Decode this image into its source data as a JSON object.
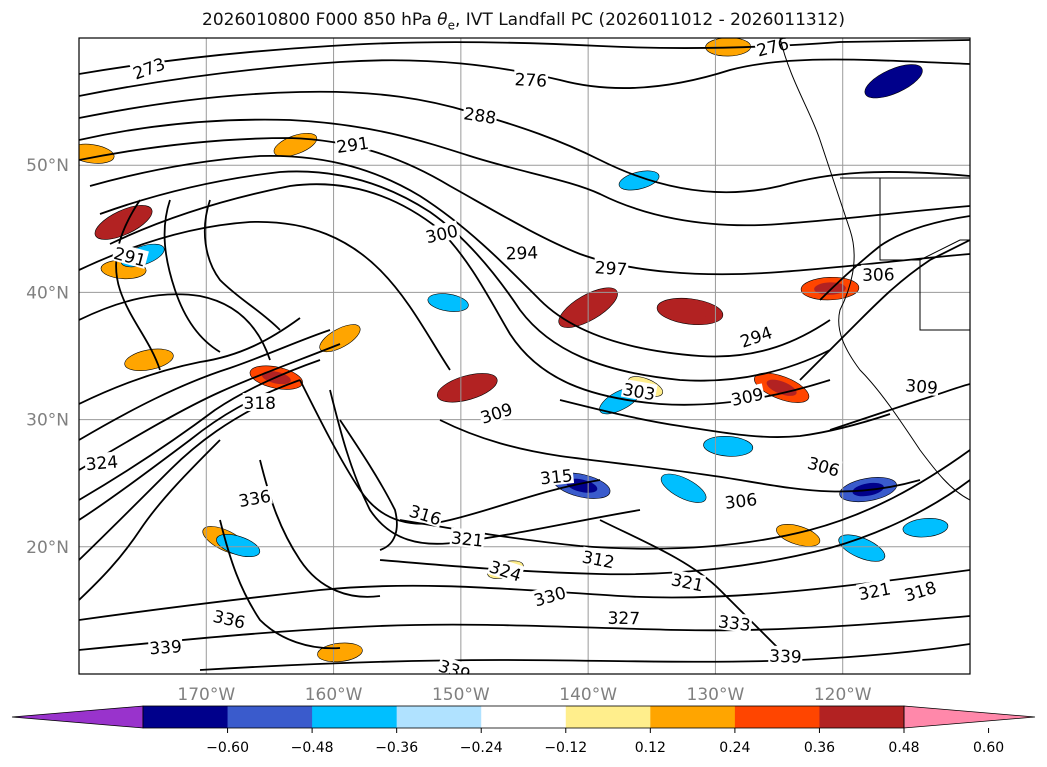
{
  "chart_data": {
    "type": "contour",
    "title": {
      "prefix": "2026010800 F000 850 hPa ",
      "theta": "θ",
      "theta_sub": "e",
      "suffix": ", IVT Landfall PC (2026011012 - 2026011312)"
    },
    "xlim": [
      -180,
      -110
    ],
    "ylim": [
      10,
      60
    ],
    "x_ticks": [
      {
        "value": -170,
        "label": "170°W"
      },
      {
        "value": -160,
        "label": "160°W"
      },
      {
        "value": -150,
        "label": "150°W"
      },
      {
        "value": -140,
        "label": "140°W"
      },
      {
        "value": -130,
        "label": "130°W"
      },
      {
        "value": -120,
        "label": "120°W"
      }
    ],
    "y_ticks": [
      {
        "value": 20,
        "label": "20°N"
      },
      {
        "value": 30,
        "label": "30°N"
      },
      {
        "value": 40,
        "label": "40°N"
      },
      {
        "value": 50,
        "label": "50°N"
      }
    ],
    "grid": true,
    "colorbar": {
      "position": "bottom",
      "extend": "both",
      "levels": [
        -0.72,
        -0.6,
        -0.48,
        -0.36,
        -0.24,
        -0.12,
        0.12,
        0.24,
        0.36,
        0.48,
        0.6,
        0.72
      ],
      "colors": [
        "#9933cc",
        "#00008b",
        "#3a5bcc",
        "#00bfff",
        "#b0e2ff",
        "#ffffff",
        "#ffee8c",
        "#ffa500",
        "#ff4500",
        "#b22222",
        "#ff88aa"
      ],
      "tick_labels": [
        "−0.60",
        "−0.48",
        "−0.36",
        "−0.24",
        "−0.12",
        "0.12",
        "0.24",
        "0.36",
        "0.48",
        "0.60"
      ]
    },
    "theta_e_contours": [
      {
        "level": 273,
        "label": "273",
        "x": -174.5,
        "y": 57.6
      },
      {
        "level": 276,
        "label": "276",
        "x": -144.5,
        "y": 56.7
      },
      {
        "level": 276,
        "label": "276",
        "x": -125.5,
        "y": 59.3
      },
      {
        "level": 288,
        "label": "288",
        "x": -148.5,
        "y": 53.9
      },
      {
        "level": 291,
        "label": "291",
        "x": -158.5,
        "y": 51.6
      },
      {
        "level": 291,
        "label": "291",
        "x": -176.0,
        "y": 42.8
      },
      {
        "level": 294,
        "label": "294",
        "x": -145.2,
        "y": 43.1
      },
      {
        "level": 294,
        "label": "294",
        "x": -126.8,
        "y": 36.5
      },
      {
        "level": 297,
        "label": "297",
        "x": -138.2,
        "y": 41.9
      },
      {
        "level": 300,
        "label": "300",
        "x": -151.5,
        "y": 44.6
      },
      {
        "level": 303,
        "label": "303",
        "x": -136.0,
        "y": 32.2
      },
      {
        "level": 306,
        "label": "306",
        "x": -128.0,
        "y": 23.6
      },
      {
        "level": 306,
        "label": "306",
        "x": -121.5,
        "y": 26.3
      },
      {
        "level": 306,
        "label": "306",
        "x": -117.2,
        "y": 41.4
      },
      {
        "level": 309,
        "label": "309",
        "x": -147.2,
        "y": 30.5
      },
      {
        "level": 309,
        "label": "309",
        "x": -113.8,
        "y": 32.6
      },
      {
        "level": 309,
        "label": "309",
        "x": -127.5,
        "y": 31.8
      },
      {
        "level": 312,
        "label": "312",
        "x": -139.2,
        "y": 19.0
      },
      {
        "level": 315,
        "label": "315",
        "x": -142.5,
        "y": 25.5
      },
      {
        "level": 316,
        "label": "316",
        "x": -152.8,
        "y": 22.5
      },
      {
        "level": 318,
        "label": "318",
        "x": -165.8,
        "y": 31.3
      },
      {
        "level": 318,
        "label": "318",
        "x": -113.9,
        "y": 16.5
      },
      {
        "level": 321,
        "label": "321",
        "x": -149.5,
        "y": 20.6
      },
      {
        "level": 321,
        "label": "321",
        "x": -117.5,
        "y": 16.5
      },
      {
        "level": 321,
        "label": "321",
        "x": -132.2,
        "y": 17.2
      },
      {
        "level": 324,
        "label": "324",
        "x": -178.2,
        "y": 26.6
      },
      {
        "level": 324,
        "label": "324",
        "x": -146.5,
        "y": 18.1
      },
      {
        "level": 327,
        "label": "327",
        "x": -137.2,
        "y": 14.4
      },
      {
        "level": 330,
        "label": "330",
        "x": -143.0,
        "y": 16.1
      },
      {
        "level": 333,
        "label": "333",
        "x": -128.5,
        "y": 14.0
      },
      {
        "level": 336,
        "label": "336",
        "x": -166.2,
        "y": 23.8
      },
      {
        "level": 336,
        "label": "336",
        "x": -168.2,
        "y": 14.3
      },
      {
        "level": 339,
        "label": "339",
        "x": -173.2,
        "y": 12.1
      },
      {
        "level": 339,
        "label": "339",
        "x": -150.5,
        "y": 10.3
      },
      {
        "level": 339,
        "label": "339",
        "x": -124.5,
        "y": 11.4
      }
    ],
    "pc_anomalies": [
      {
        "value": 0.55,
        "x": -140.0,
        "y": 38.8
      },
      {
        "value": 0.55,
        "x": -132.0,
        "y": 38.5
      },
      {
        "value": 0.5,
        "x": -149.5,
        "y": 32.5
      },
      {
        "value": 0.45,
        "x": -124.8,
        "y": 32.5
      },
      {
        "value": 0.45,
        "x": -121.0,
        "y": 40.3
      },
      {
        "value": 0.5,
        "x": -176.5,
        "y": 45.5
      },
      {
        "value": 0.4,
        "x": -164.5,
        "y": 33.3
      },
      {
        "value": 0.35,
        "x": -174.5,
        "y": 34.7
      },
      {
        "value": 0.35,
        "x": -168.5,
        "y": 20.5
      },
      {
        "value": 0.3,
        "x": -176.5,
        "y": 41.8
      },
      {
        "value": 0.3,
        "x": -163.0,
        "y": 51.6
      },
      {
        "value": 0.3,
        "x": -123.5,
        "y": 20.9
      },
      {
        "value": 0.3,
        "x": -159.5,
        "y": 11.7
      },
      {
        "value": 0.3,
        "x": -159.5,
        "y": 36.4
      },
      {
        "value": 0.3,
        "x": -179.0,
        "y": 50.9
      },
      {
        "value": 0.2,
        "x": -146.5,
        "y": 18.2
      },
      {
        "value": 0.2,
        "x": -135.5,
        "y": 32.6
      },
      {
        "value": 0.3,
        "x": -129.0,
        "y": 59.3
      },
      {
        "value": -0.5,
        "x": -116.0,
        "y": 56.6
      },
      {
        "value": -0.45,
        "x": -140.5,
        "y": 24.8
      },
      {
        "value": -0.45,
        "x": -118.0,
        "y": 24.5
      },
      {
        "value": -0.35,
        "x": -132.5,
        "y": 24.6
      },
      {
        "value": -0.35,
        "x": -129.0,
        "y": 27.9
      },
      {
        "value": -0.3,
        "x": -175.0,
        "y": 42.9
      },
      {
        "value": -0.3,
        "x": -167.5,
        "y": 20.1
      },
      {
        "value": -0.3,
        "x": -113.5,
        "y": 21.5
      },
      {
        "value": -0.3,
        "x": -137.5,
        "y": 31.5
      },
      {
        "value": -0.25,
        "x": -151.0,
        "y": 39.2
      },
      {
        "value": -0.25,
        "x": -136.0,
        "y": 48.8
      },
      {
        "value": -0.35,
        "x": -118.5,
        "y": 19.9
      }
    ]
  }
}
